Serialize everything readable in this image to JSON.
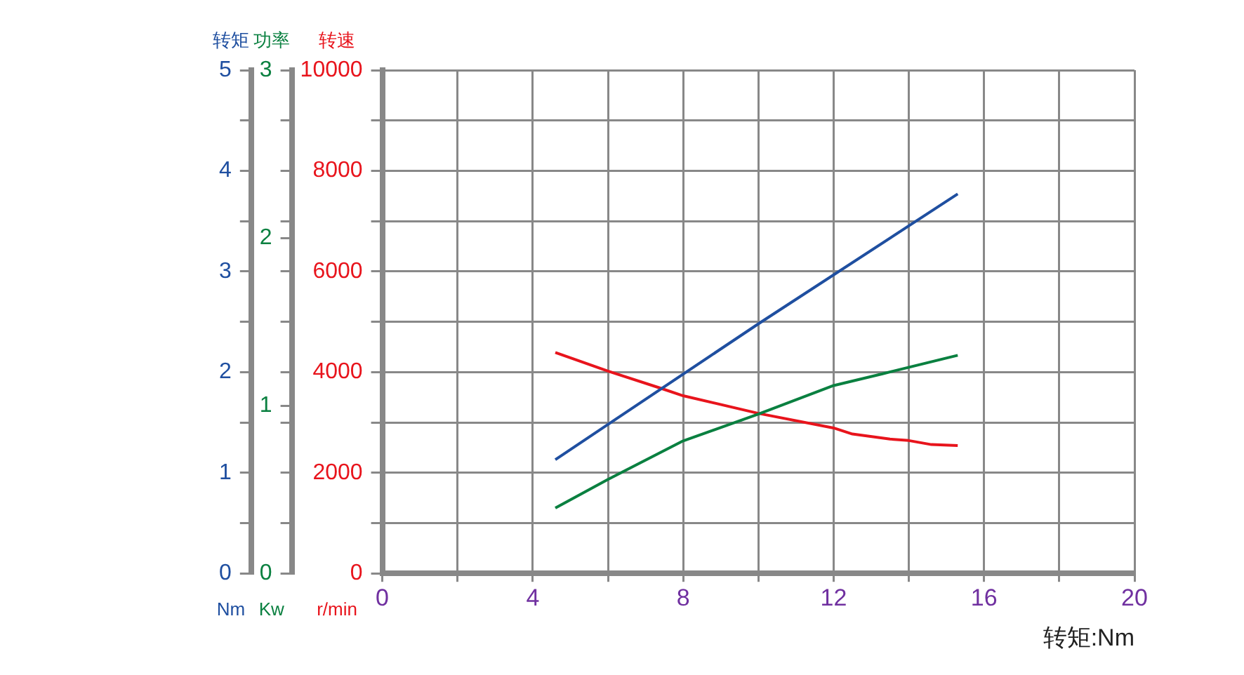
{
  "chart_data": {
    "type": "line",
    "xlabel": "转矩:Nm",
    "ylabel": "转矩",
    "y2label": "功率",
    "y3label": "转速",
    "annotations": [
      "Nm",
      "Kw",
      "r/min"
    ],
    "xlim": [
      0,
      20
    ],
    "xticks": [
      0,
      {
        "value": 2,
        "label": null
      },
      4,
      {
        "value": 6,
        "label": null
      },
      8,
      {
        "value": 10,
        "label": null
      },
      12,
      {
        "value": 14,
        "label": null
      },
      16,
      {
        "value": 18,
        "label": null
      },
      20
    ],
    "ylim": [
      0,
      5
    ],
    "yticks": [
      0,
      {
        "value": 0.5,
        "label": null
      },
      1,
      {
        "value": 1.5,
        "label": null
      },
      2,
      {
        "value": 2.5,
        "label": null
      },
      3,
      {
        "value": 3.5,
        "label": null
      },
      4,
      {
        "value": 4.5,
        "label": null
      },
      5
    ],
    "y2lim": [
      0,
      3
    ],
    "y2ticks": [
      0,
      {
        "value": 0.3,
        "label": null
      },
      {
        "value": 0.6,
        "label": null
      },
      {
        "value": 0.9,
        "label": null
      },
      1,
      {
        "value": 1.2,
        "label": null
      },
      {
        "value": 1.5,
        "label": null
      },
      {
        "value": 1.8,
        "label": null
      },
      2,
      {
        "value": 2.1,
        "label": null
      },
      {
        "value": 2.4,
        "label": null
      },
      {
        "value": 2.7,
        "label": null
      },
      3
    ],
    "y3lim": [
      0,
      10000
    ],
    "y3ticks": [
      0,
      {
        "value": 1000,
        "label": null
      },
      2000,
      {
        "value": 3000,
        "label": null
      },
      4000,
      {
        "value": 5000,
        "label": null
      },
      6000,
      {
        "value": 7000,
        "label": null
      },
      8000,
      {
        "value": 9000,
        "label": null
      },
      10000
    ],
    "grid": true,
    "series": [
      {
        "color": "#1f4fa0",
        "axis": "y",
        "x": [
          4.6,
          6.0,
          10.0,
          15.3
        ],
        "values": [
          1.13,
          1.48,
          2.48,
          3.77
        ]
      },
      {
        "color": "#0a8040",
        "axis": "y2",
        "x": [
          4.6,
          6.0,
          8.0,
          10.0,
          12.0,
          13.3,
          15.3
        ],
        "values": [
          0.39,
          0.56,
          0.79,
          0.95,
          1.12,
          1.19,
          1.3
        ]
      },
      {
        "color": "#e8141c",
        "axis": "y3",
        "x": [
          4.6,
          6.0,
          7.4,
          8.0,
          10.0,
          12.0,
          12.5,
          13.5,
          14.0,
          14.6,
          15.3
        ],
        "values": [
          4390,
          4020,
          3680,
          3530,
          3180,
          2890,
          2770,
          2670,
          2640,
          2560,
          2540
        ]
      }
    ]
  }
}
